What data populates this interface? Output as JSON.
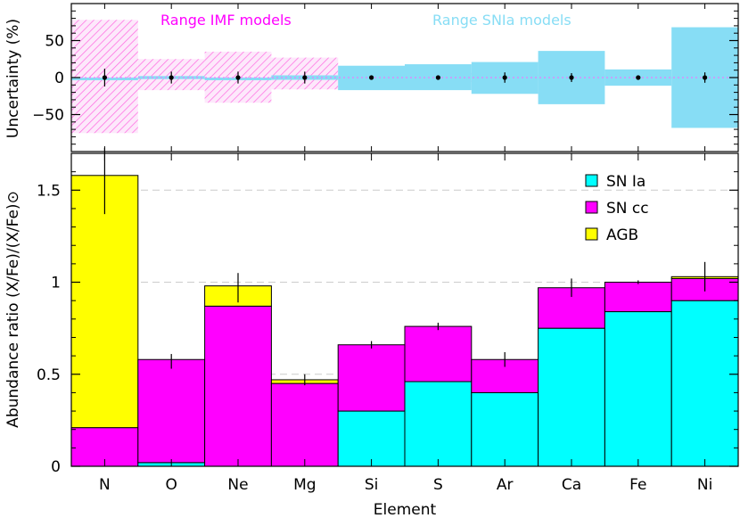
{
  "chart_data": [
    {
      "type": "bar",
      "panel": "uncertainty",
      "categories": [
        "N",
        "O",
        "Ne",
        "Mg",
        "Si",
        "S",
        "Ar",
        "Ca",
        "Fe",
        "Ni"
      ],
      "ylabel": "Uncertainty (%)",
      "ylim": [
        -100,
        100
      ],
      "yticks": [
        -50,
        0,
        50
      ],
      "points": [
        0,
        0,
        0,
        0,
        0,
        0,
        0,
        0,
        0,
        0
      ],
      "point_errors": [
        12,
        8,
        8,
        8,
        3,
        2,
        7,
        6,
        1,
        7
      ],
      "imf_range_label": "Range IMF models",
      "snia_range_label": "Range SNIa models",
      "imf_range": [
        [
          -75,
          78
        ],
        [
          -17,
          25
        ],
        [
          -34,
          35
        ],
        [
          -16,
          27
        ],
        [
          -8,
          8
        ],
        [
          -6,
          6
        ],
        [
          -5,
          5
        ],
        [
          -3,
          3
        ],
        [
          -2,
          2
        ],
        [
          -2,
          2
        ]
      ],
      "snia_range": [
        [
          0,
          0
        ],
        [
          -2,
          2
        ],
        [
          0,
          0
        ],
        [
          -3,
          3
        ],
        [
          -17,
          16
        ],
        [
          -17,
          18
        ],
        [
          -22,
          21
        ],
        [
          -36,
          36
        ],
        [
          -11,
          11
        ],
        [
          -68,
          68
        ]
      ],
      "colors": {
        "imf": "#ff00ff",
        "snia": "#87ddf5",
        "points": "#000000"
      }
    },
    {
      "type": "bar",
      "panel": "abundance",
      "stacked": true,
      "xlabel": "Element",
      "ylabel": "Abundance ratio (X/Fe)/(X/Fe)⊙",
      "ylim": [
        0,
        1.7
      ],
      "yticks": [
        0,
        0.5,
        1,
        1.5
      ],
      "ytick_labels": [
        "0",
        "0.5",
        "1",
        "1.5"
      ],
      "gridlines": [
        0.5,
        1,
        1.5
      ],
      "categories": [
        "N",
        "O",
        "Ne",
        "Mg",
        "Si",
        "S",
        "Ar",
        "Ca",
        "Fe",
        "Ni"
      ],
      "series": [
        {
          "name": "SN Ia",
          "color": "#00ffff",
          "values": [
            0.0,
            0.02,
            0.0,
            0.0,
            0.3,
            0.46,
            0.4,
            0.75,
            0.84,
            0.9
          ]
        },
        {
          "name": "SN cc",
          "color": "#ff00ff",
          "values": [
            0.21,
            0.56,
            0.87,
            0.45,
            0.36,
            0.3,
            0.18,
            0.22,
            0.16,
            0.12
          ]
        },
        {
          "name": "AGB",
          "color": "#ffff00",
          "values": [
            1.37,
            0.0,
            0.11,
            0.02,
            0.0,
            0.0,
            0.0,
            0.0,
            0.0,
            0.01
          ]
        }
      ],
      "observed": [
        1.55,
        0.57,
        0.97,
        0.47,
        0.66,
        0.76,
        0.58,
        0.97,
        1.0,
        1.03
      ],
      "observed_err": [
        0.18,
        0.04,
        0.08,
        0.03,
        0.02,
        0.02,
        0.04,
        0.05,
        0.01,
        0.08
      ],
      "legend": {
        "position": "top-right",
        "items": [
          "SN Ia",
          "SN cc",
          "AGB"
        ]
      }
    }
  ]
}
